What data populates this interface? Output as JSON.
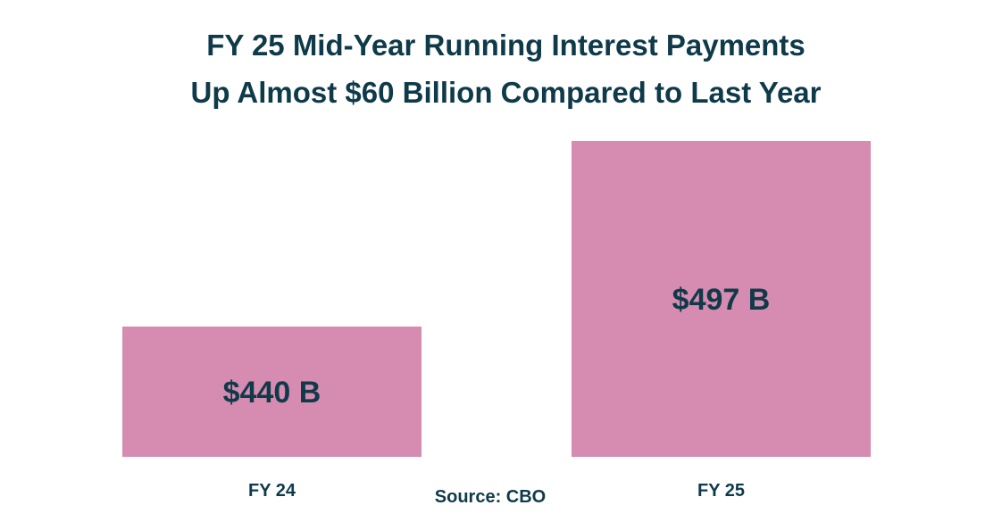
{
  "chart_data": {
    "type": "bar",
    "title_lines": [
      "FY 25 Mid-Year Running Interest Payments",
      "Up Almost $60 Billion Compared to Last Year"
    ],
    "categories": [
      "FY 24",
      "FY 25"
    ],
    "values": [
      440,
      497
    ],
    "data_labels": [
      "$440 B",
      "$497 B"
    ],
    "units": "billions of dollars",
    "ylim": [
      400,
      500
    ],
    "grid": false,
    "xlabel": "",
    "ylabel": "",
    "colors": {
      "bar": "#d68bb0",
      "text": "#0f3a4a"
    },
    "source": "Source: CBO"
  }
}
